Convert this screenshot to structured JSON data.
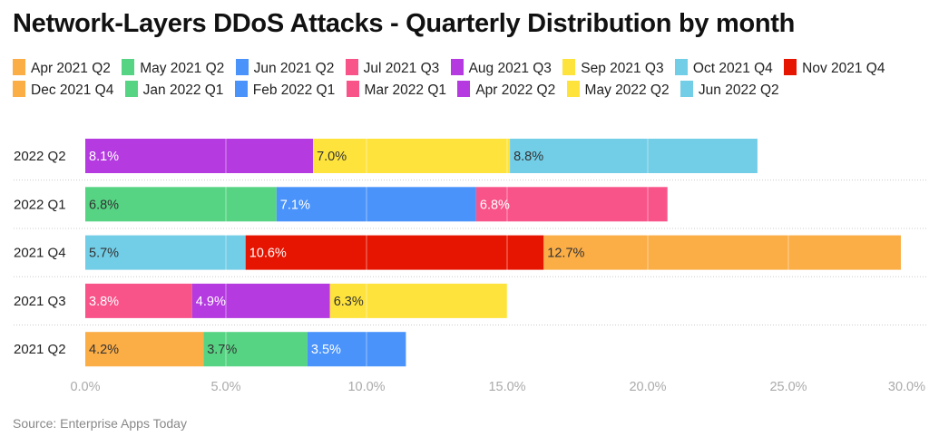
{
  "title": "Network-Layers DDoS Attacks - Quarterly Distribution by month",
  "source": "Source: Enterprise Apps Today",
  "chart_data": {
    "type": "bar",
    "orientation": "horizontal",
    "stacked": true,
    "title": "Network-Layers DDoS Attacks - Quarterly Distribution by month",
    "categories": [
      "2022 Q2",
      "2022 Q1",
      "2021 Q4",
      "2021 Q3",
      "2021 Q2"
    ],
    "xlim": [
      0,
      30
    ],
    "x_ticks": [
      "0.0%",
      "5.0%",
      "10.0%",
      "15.0%",
      "20.0%",
      "25.0%",
      "30.0%"
    ],
    "grid": true,
    "legend_position": "top",
    "series": [
      {
        "name": "Apr 2021 Q2",
        "color": "#FBAD46",
        "values": [
          null,
          null,
          null,
          null,
          4.2
        ]
      },
      {
        "name": "May 2021 Q2",
        "color": "#56D483",
        "values": [
          null,
          null,
          null,
          null,
          3.7
        ]
      },
      {
        "name": "Jun 2021 Q2",
        "color": "#4A93FB",
        "values": [
          null,
          null,
          null,
          null,
          3.5
        ]
      },
      {
        "name": "Jul 2021 Q3",
        "color": "#F9548A",
        "values": [
          null,
          null,
          null,
          3.8,
          null
        ]
      },
      {
        "name": "Aug 2021 Q3",
        "color": "#B53BE0",
        "values": [
          null,
          null,
          null,
          4.9,
          null
        ]
      },
      {
        "name": "Sep 2021 Q3",
        "color": "#FEE33C",
        "values": [
          null,
          null,
          null,
          6.3,
          null
        ]
      },
      {
        "name": "Oct 2021 Q4",
        "color": "#72CDE6",
        "values": [
          null,
          null,
          5.7,
          null,
          null
        ]
      },
      {
        "name": "Nov 2021 Q4",
        "color": "#E61502",
        "values": [
          null,
          null,
          10.6,
          null,
          null
        ]
      },
      {
        "name": "Dec 2021 Q4",
        "color": "#FBAD46",
        "values": [
          null,
          null,
          12.7,
          null,
          null
        ]
      },
      {
        "name": "Jan 2022 Q1",
        "color": "#56D483",
        "values": [
          null,
          6.8,
          null,
          null,
          null
        ]
      },
      {
        "name": "Feb 2022 Q1",
        "color": "#4A93FB",
        "values": [
          null,
          7.1,
          null,
          null,
          null
        ]
      },
      {
        "name": "Mar 2022 Q1",
        "color": "#F9548A",
        "values": [
          null,
          6.8,
          null,
          null,
          null
        ]
      },
      {
        "name": "Apr 2022 Q2",
        "color": "#B53BE0",
        "values": [
          8.1,
          null,
          null,
          null,
          null
        ]
      },
      {
        "name": "May 2022 Q2",
        "color": "#FEE33C",
        "values": [
          7.0,
          null,
          null,
          null,
          null
        ]
      },
      {
        "name": "Jun 2022 Q2",
        "color": "#72CDE6",
        "values": [
          8.8,
          null,
          null,
          null,
          null
        ]
      }
    ]
  }
}
